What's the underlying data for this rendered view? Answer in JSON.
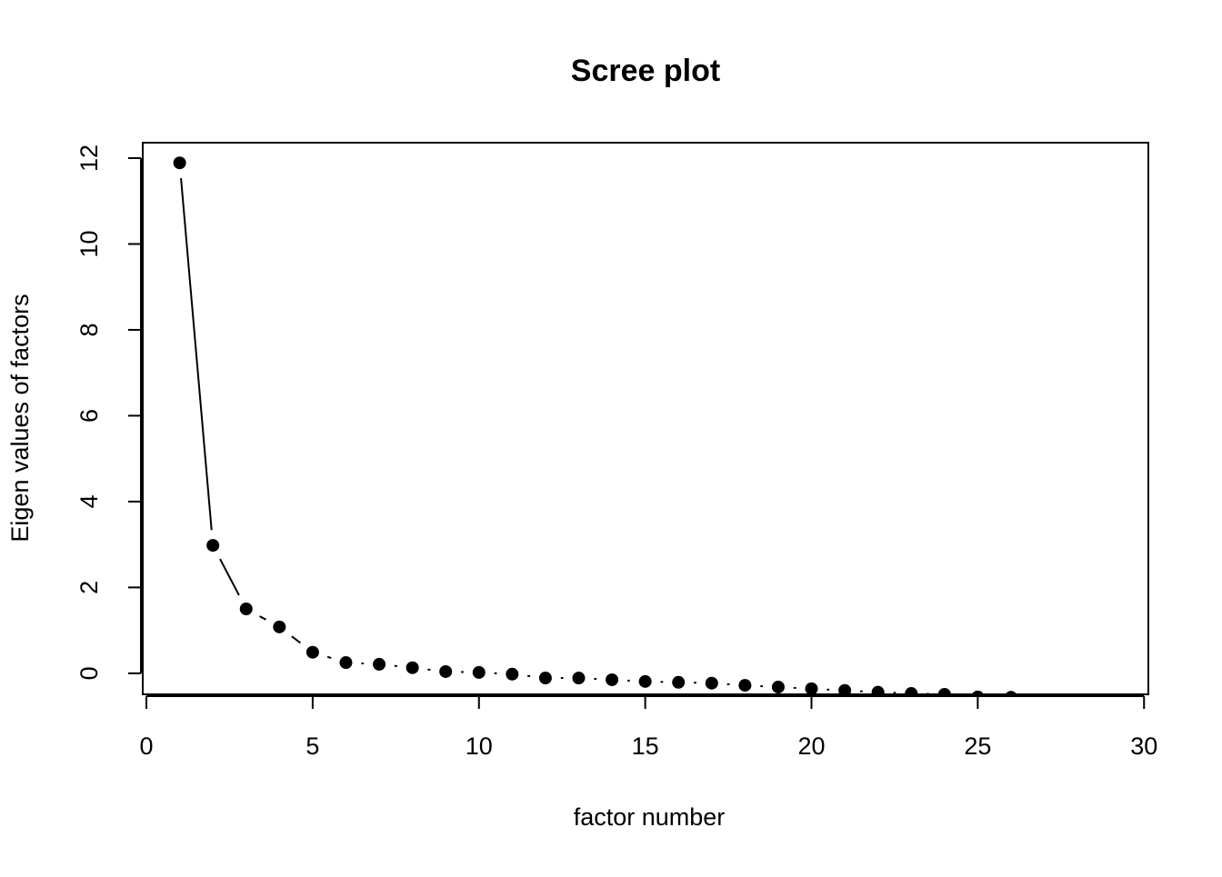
{
  "chart_data": {
    "type": "line",
    "title": "Scree plot",
    "x_label": "factor number",
    "y_label": "Eigen values of factors",
    "x": [
      1,
      2,
      3,
      4,
      5,
      6,
      7,
      8,
      9,
      10,
      11,
      12,
      13,
      14,
      15,
      16,
      17,
      18,
      19,
      20,
      21,
      22,
      23,
      24,
      25,
      26
    ],
    "series": [
      {
        "color": "#000000",
        "values": [
          11.89,
          2.98,
          1.5,
          1.08,
          0.49,
          0.25,
          0.21,
          0.13,
          0.04,
          0.02,
          -0.02,
          -0.11,
          -0.11,
          -0.15,
          -0.19,
          -0.21,
          -0.23,
          -0.28,
          -0.32,
          -0.36,
          -0.4,
          -0.44,
          -0.47,
          -0.49,
          -0.55,
          -0.56
        ]
      }
    ],
    "xlim": [
      -0.11,
      30.13
    ],
    "ylim": [
      -0.49,
      12.36
    ],
    "xticks": [
      0,
      5,
      10,
      15,
      20,
      25,
      30
    ],
    "yticks": [
      0,
      2,
      4,
      6,
      8,
      10,
      12
    ]
  }
}
